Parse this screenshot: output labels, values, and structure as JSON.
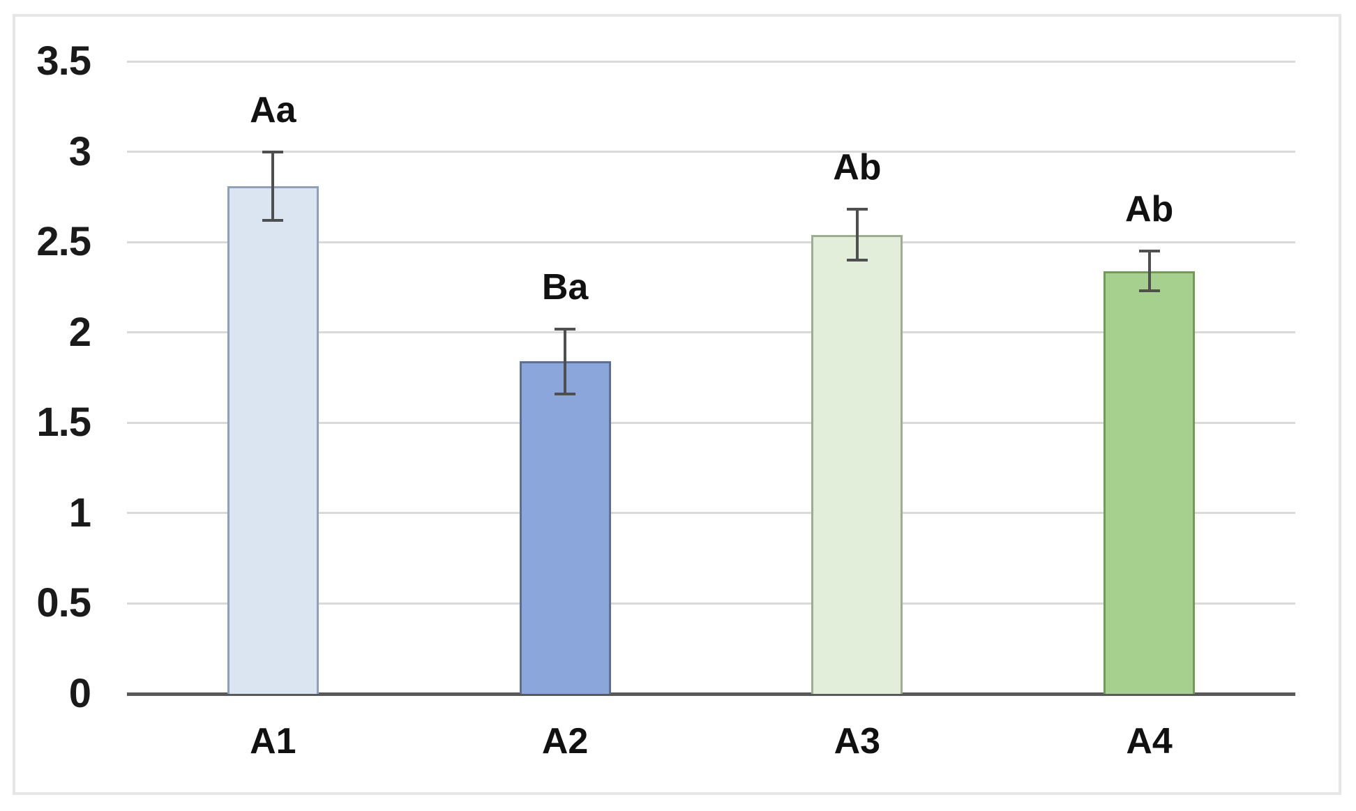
{
  "chart_data": {
    "type": "bar",
    "title": "",
    "xlabel": "",
    "ylabel": "",
    "categories": [
      "A1",
      "A2",
      "A3",
      "A4"
    ],
    "values": [
      2.81,
      1.84,
      2.54,
      2.34
    ],
    "error_plus": [
      0.19,
      0.18,
      0.14,
      0.11
    ],
    "error_minus": [
      0.19,
      0.18,
      0.14,
      0.11
    ],
    "annotations": [
      "Aa",
      "Ba",
      "Ab",
      "Ab"
    ],
    "bar_fill_colors": [
      "#dbe5f2",
      "#8ba6db",
      "#e2eeda",
      "#a6d08e"
    ],
    "bar_border_colors": [
      "#8fa0ba",
      "#5d6f99",
      "#9cae8e",
      "#739a58"
    ],
    "ylim": [
      0,
      3.5
    ],
    "yticks": [
      0,
      0.5,
      1,
      1.5,
      2,
      2.5,
      3,
      3.5
    ],
    "ytick_labels": [
      "0",
      "0.5",
      "1",
      "1.5",
      "2",
      "2.5",
      "3",
      "3.5"
    ],
    "grid": "horizontal",
    "legend": "none"
  },
  "styles": {
    "background": "#ffffff",
    "frame_border": "#e6e6e6",
    "gridline_color": "#d9d9d9",
    "axis_line_color": "#595959",
    "error_bar_color": "#4f4f4f",
    "text_color": "#111111"
  }
}
